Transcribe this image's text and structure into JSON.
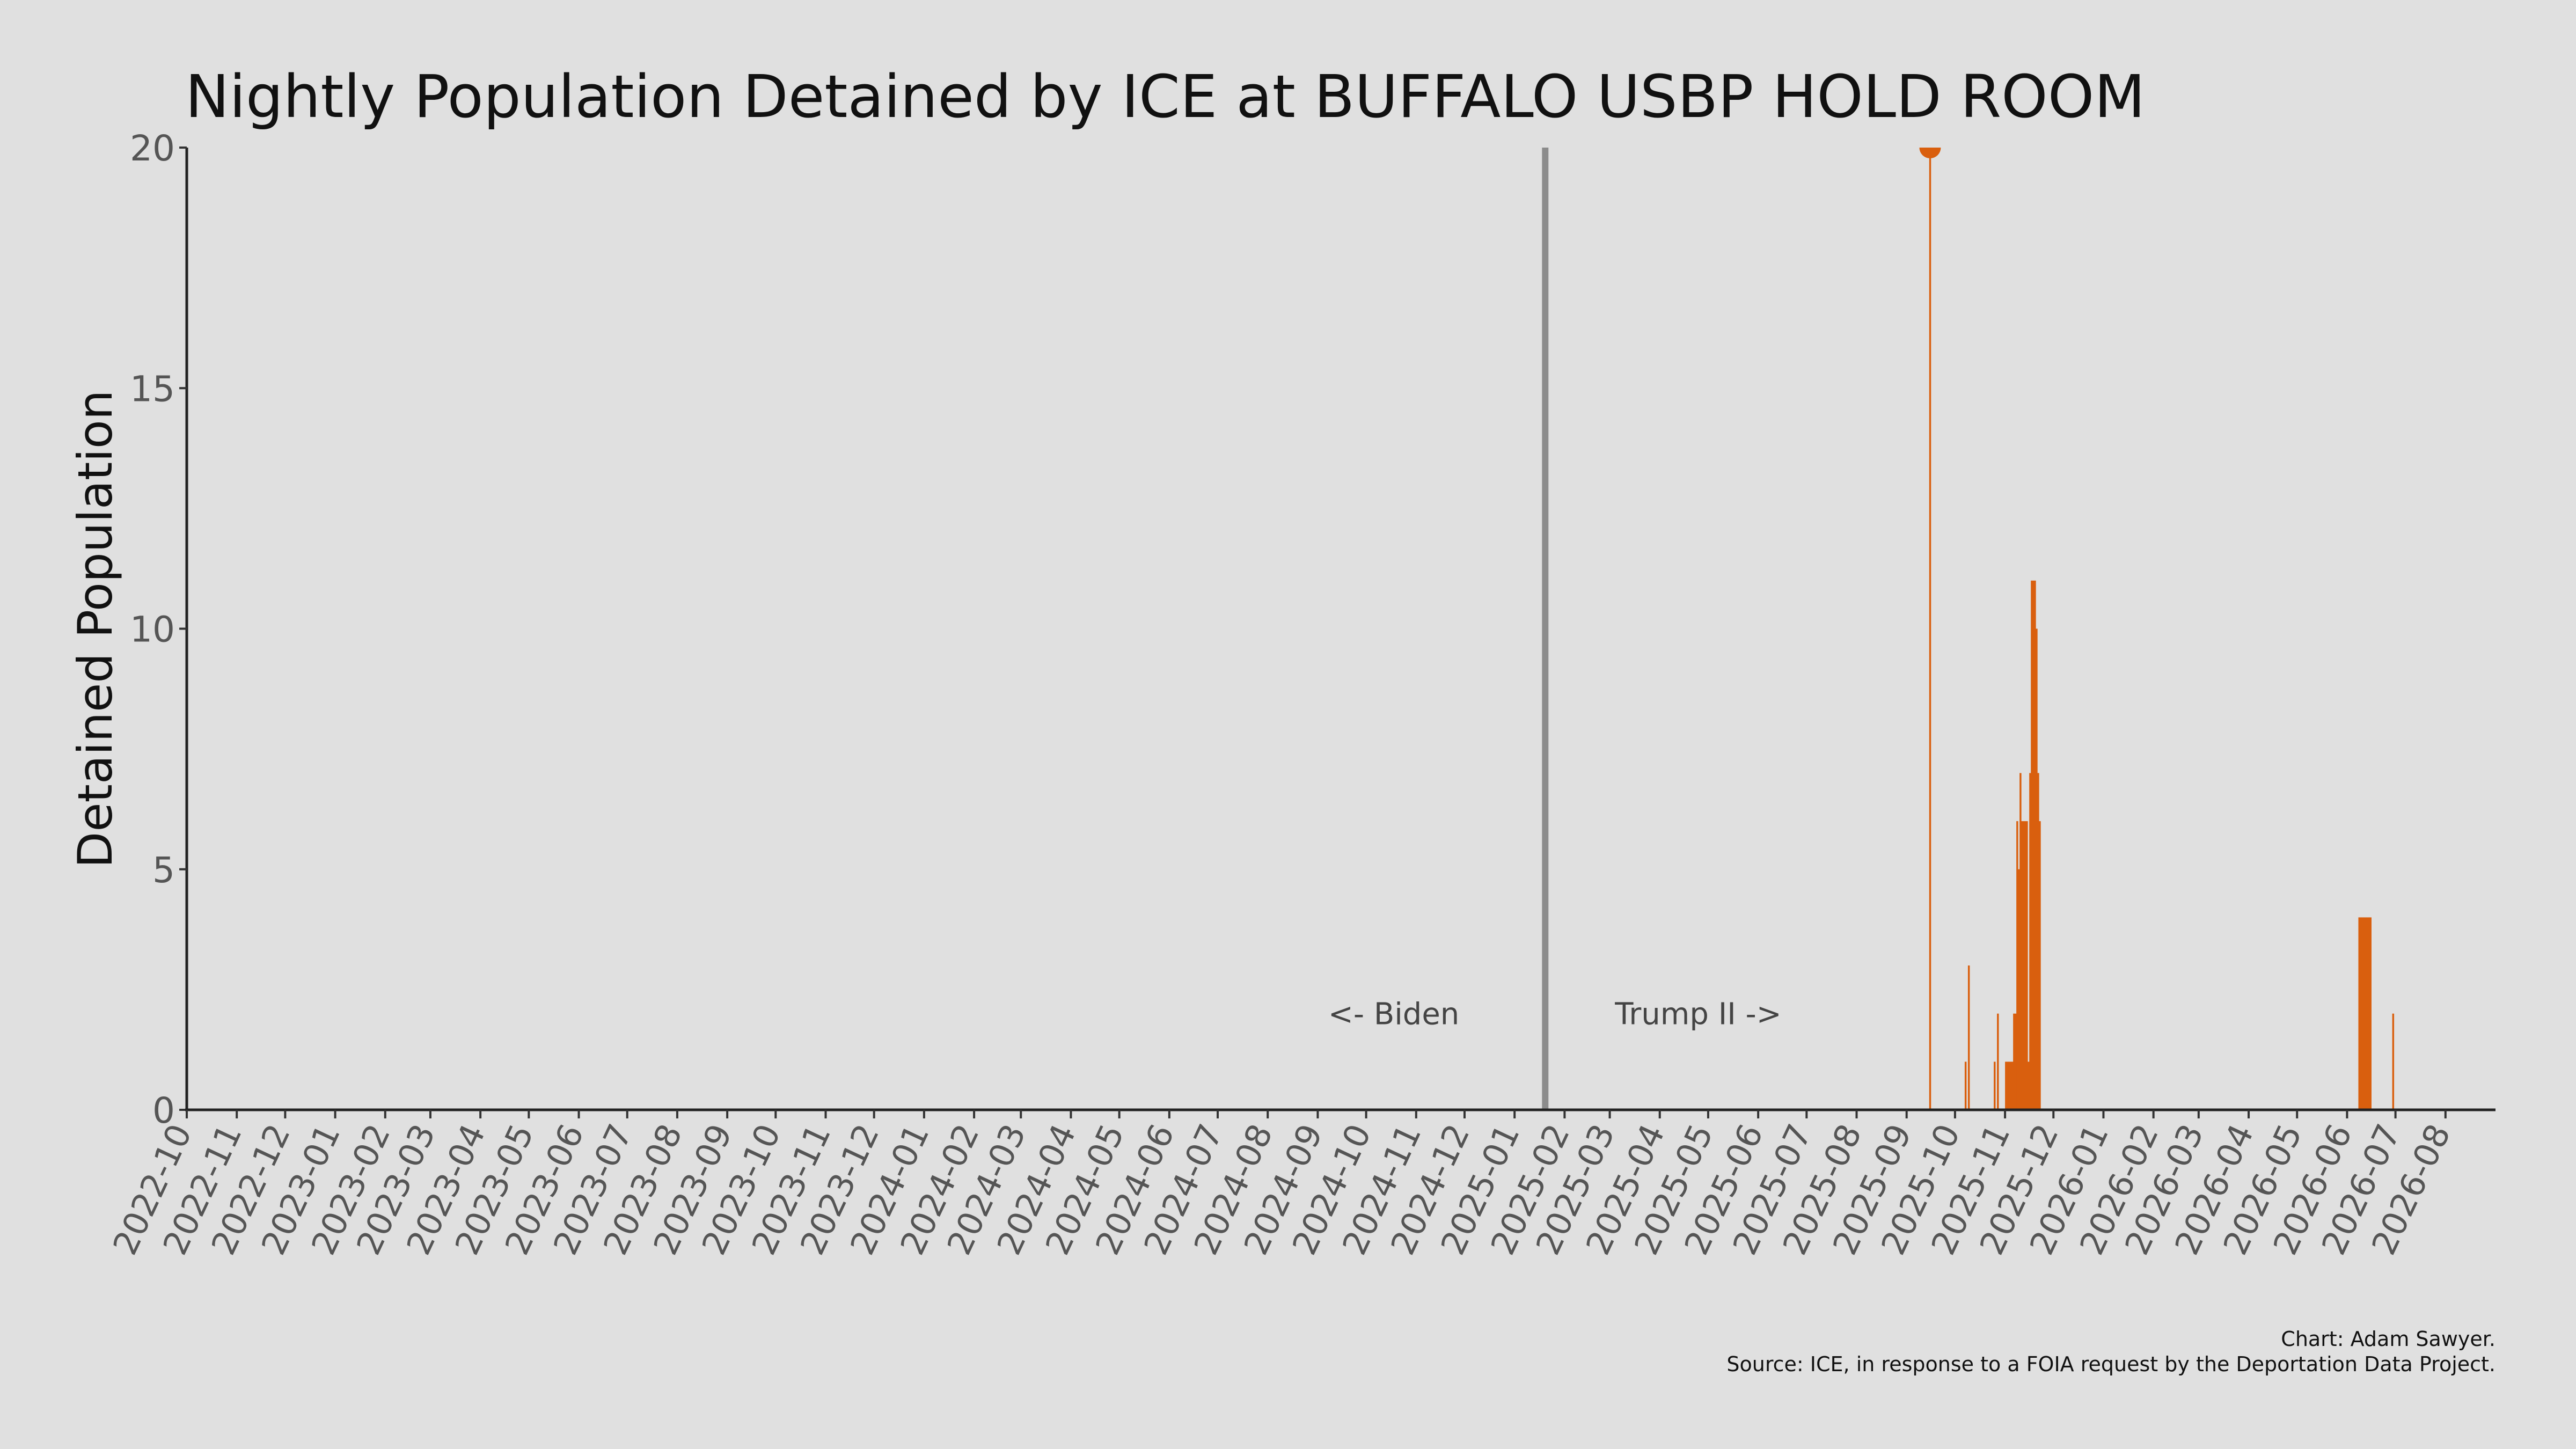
{
  "chart_data": {
    "type": "bar",
    "title": "Nightly Population Detained by ICE at BUFFALO USBP HOLD ROOM",
    "ylabel": "Detained Population",
    "xlabel": "",
    "ylim": [
      0,
      20
    ],
    "xlim": [
      "2022-10-01",
      "2026-08-31"
    ],
    "y_ticks": [
      0,
      5,
      10,
      15,
      20
    ],
    "x_tick_labels": [
      "2022-10",
      "2022-11",
      "2022-12",
      "2023-01",
      "2023-02",
      "2023-03",
      "2023-04",
      "2023-05",
      "2023-06",
      "2023-07",
      "2023-08",
      "2023-09",
      "2023-10",
      "2023-11",
      "2023-12",
      "2024-01",
      "2024-02",
      "2024-03",
      "2024-04",
      "2024-05",
      "2024-06",
      "2024-07",
      "2024-08",
      "2024-09",
      "2024-10",
      "2024-11",
      "2024-12",
      "2025-01",
      "2025-02",
      "2025-03",
      "2025-04",
      "2025-05",
      "2025-06",
      "2025-07",
      "2025-08",
      "2025-09",
      "2025-10",
      "2025-11",
      "2025-12",
      "2026-01",
      "2026-02",
      "2026-03",
      "2026-04",
      "2026-05",
      "2026-06",
      "2026-07",
      "2026-08"
    ],
    "grid": false,
    "colors": {
      "bars": "#d95f0e",
      "divider": "#8c8c8c",
      "background": "#e0e0e0"
    },
    "divider": {
      "date": "2025-01-20"
    },
    "annotations": [
      {
        "text": "<- Biden",
        "side": "left of divider"
      },
      {
        "text": "Trump II ->",
        "side": "right of divider"
      }
    ],
    "max_marker": {
      "date": "2025-09-15",
      "value": 20
    },
    "series": [
      {
        "points": [
          [
            "2025-09-15",
            20
          ],
          [
            "2025-10-07",
            1
          ],
          [
            "2025-10-09",
            3
          ],
          [
            "2025-10-25",
            1
          ],
          [
            "2025-10-27",
            2
          ],
          [
            "2025-11-01",
            1
          ],
          [
            "2025-11-02",
            1
          ],
          [
            "2025-11-03",
            1
          ],
          [
            "2025-11-04",
            1
          ],
          [
            "2025-11-05",
            1
          ],
          [
            "2025-11-06",
            2
          ],
          [
            "2025-11-07",
            2
          ],
          [
            "2025-11-08",
            6
          ],
          [
            "2025-11-09",
            5
          ],
          [
            "2025-11-10",
            7
          ],
          [
            "2025-11-11",
            6
          ],
          [
            "2025-11-12",
            6
          ],
          [
            "2025-11-13",
            6
          ],
          [
            "2025-11-14",
            6
          ],
          [
            "2025-11-15",
            1
          ],
          [
            "2025-11-16",
            7
          ],
          [
            "2025-11-17",
            11
          ],
          [
            "2025-11-18",
            11
          ],
          [
            "2025-11-19",
            11
          ],
          [
            "2025-11-20",
            10
          ],
          [
            "2025-11-21",
            7
          ],
          [
            "2025-11-22",
            6
          ],
          [
            "2026-06-08",
            4
          ],
          [
            "2026-06-09",
            4
          ],
          [
            "2026-06-10",
            4
          ],
          [
            "2026-06-11",
            4
          ],
          [
            "2026-06-12",
            4
          ],
          [
            "2026-06-13",
            4
          ],
          [
            "2026-06-14",
            4
          ],
          [
            "2026-06-15",
            4
          ],
          [
            "2026-06-29",
            2
          ]
        ]
      }
    ],
    "caption": [
      "Chart: Adam Sawyer.",
      "Source: ICE, in response to a FOIA request by the Deportation Data Project."
    ]
  }
}
